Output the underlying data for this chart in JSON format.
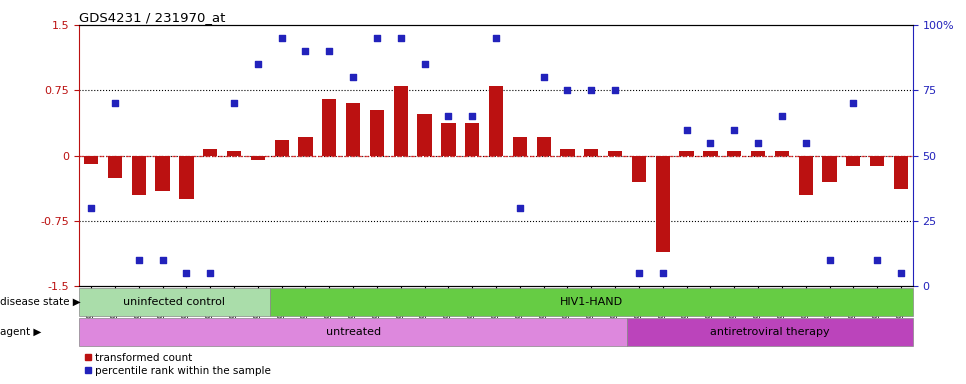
{
  "title": "GDS4231 / 231970_at",
  "samples": [
    "GSM697483",
    "GSM697484",
    "GSM697485",
    "GSM697486",
    "GSM697487",
    "GSM697488",
    "GSM697489",
    "GSM697490",
    "GSM697491",
    "GSM697492",
    "GSM697493",
    "GSM697494",
    "GSM697495",
    "GSM697496",
    "GSM697497",
    "GSM697498",
    "GSM697499",
    "GSM697500",
    "GSM697501",
    "GSM697502",
    "GSM697503",
    "GSM697504",
    "GSM697505",
    "GSM697506",
    "GSM697507",
    "GSM697508",
    "GSM697509",
    "GSM697510",
    "GSM697511",
    "GSM697512",
    "GSM697513",
    "GSM697514",
    "GSM697515",
    "GSM697516",
    "GSM697517"
  ],
  "transformed_count": [
    -0.1,
    -0.25,
    -0.45,
    -0.4,
    -0.5,
    0.08,
    0.05,
    -0.05,
    0.18,
    0.22,
    0.65,
    0.6,
    0.52,
    0.8,
    0.48,
    0.38,
    0.38,
    0.8,
    0.22,
    0.22,
    0.08,
    0.08,
    0.05,
    -0.3,
    -1.1,
    0.05,
    0.05,
    0.05,
    0.05,
    0.05,
    -0.45,
    -0.3,
    -0.12,
    -0.12,
    -0.38
  ],
  "percentile_rank": [
    30,
    70,
    10,
    10,
    5,
    5,
    70,
    85,
    95,
    90,
    90,
    80,
    95,
    95,
    85,
    65,
    65,
    95,
    30,
    80,
    75,
    75,
    75,
    5,
    5,
    60,
    55,
    60,
    55,
    65,
    55,
    10,
    70,
    10,
    5
  ],
  "ylim_left": [
    -1.5,
    1.5
  ],
  "ylim_right": [
    0,
    100
  ],
  "bar_color": "#bb1111",
  "scatter_color": "#2222bb",
  "zero_line_color": "#dd2222",
  "disease_state_groups": [
    {
      "label": "uninfected control",
      "start": 0,
      "end": 8,
      "color": "#aaddaa"
    },
    {
      "label": "HIV1-HAND",
      "start": 8,
      "end": 35,
      "color": "#66cc44"
    }
  ],
  "agent_groups": [
    {
      "label": "untreated",
      "start": 0,
      "end": 23,
      "color": "#dd88dd"
    },
    {
      "label": "antiretroviral therapy",
      "start": 23,
      "end": 35,
      "color": "#bb44bb"
    }
  ],
  "legend_items": [
    {
      "label": "transformed count",
      "color": "#bb1111",
      "marker": "s"
    },
    {
      "label": "percentile rank within the sample",
      "color": "#2222bb",
      "marker": "s"
    }
  ],
  "label_disease_state": "disease state",
  "label_agent": "agent",
  "background_color": "#ffffff",
  "left_yticks": [
    -1.5,
    -0.75,
    0.0,
    0.75,
    1.5
  ],
  "left_ytick_labels": [
    "-1.5",
    "-0.75",
    "0",
    "0.75",
    "1.5"
  ],
  "right_yticks": [
    0,
    25,
    50,
    75,
    100
  ],
  "right_ytick_labels": [
    "0",
    "25",
    "50",
    "75",
    "100%"
  ],
  "dotted_yvals": [
    0.75,
    0.0,
    -0.75
  ]
}
